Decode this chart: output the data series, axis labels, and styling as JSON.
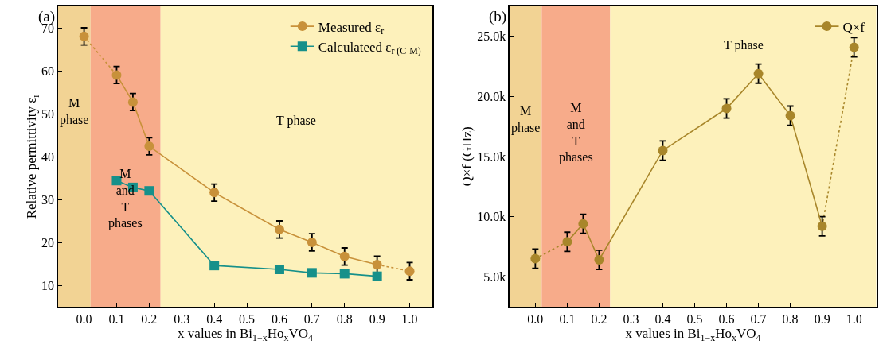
{
  "chart_data": [
    {
      "type": "line",
      "title": "(a)",
      "xlabel": "x values in Bi$_{1−x}$Ho$_{x}$VO$_{4}$",
      "ylabel": "Relative permittivity ε$_{r}$",
      "xlim": [
        -0.08,
        1.07
      ],
      "ylim": [
        5,
        75
      ],
      "xticks": [
        {
          "value": 0,
          "label": "0.0"
        },
        {
          "value": 0.1,
          "label": "0.1"
        },
        {
          "value": 0.2,
          "label": "0.2"
        },
        {
          "value": 0.3,
          "label": "0.3"
        },
        {
          "value": 0.4,
          "label": "0.4"
        },
        {
          "value": 0.5,
          "label": "0.5"
        },
        {
          "value": 0.6,
          "label": "0.6"
        },
        {
          "value": 0.7,
          "label": "0.7"
        },
        {
          "value": 0.8,
          "label": "0.8"
        },
        {
          "value": 0.9,
          "label": "0.9"
        },
        {
          "value": 1,
          "label": "1.0"
        }
      ],
      "yticks": [
        10,
        20,
        30,
        40,
        50,
        60,
        70
      ],
      "bands": [
        {
          "axis": "x",
          "from": -0.08,
          "to": 0.02,
          "label": "M\nphase",
          "color": "#f2d394"
        },
        {
          "axis": "x",
          "from": 0.02,
          "to": 0.235,
          "label": "M\nand\nT\nphases",
          "color": "#f7ab8a"
        },
        {
          "axis": "x",
          "from": 0.235,
          "to": 1.07,
          "label": "T phase",
          "color": "#fdf1bb"
        }
      ],
      "legend": "top right",
      "series": [
        {
          "name": "Measured ε$_{r}$",
          "color": "#c8913a",
          "line_style": "solid",
          "marker": "circle",
          "x": [
            0.1,
            0.15,
            0.2,
            0.4,
            0.6,
            0.7,
            0.8,
            0.9
          ],
          "values": [
            59,
            52.7,
            42.4,
            31.6,
            23,
            20,
            16.7,
            14.8
          ],
          "errors": [
            2,
            2,
            2,
            2,
            2,
            2,
            2,
            2
          ]
        },
        {
          "color": "#c8913a",
          "line_style": "dotted",
          "marker": "none",
          "x": [
            0,
            0.1
          ],
          "values": [
            68,
            59
          ]
        },
        {
          "color": "#c8913a",
          "line_style": "dotted",
          "marker": "none",
          "x": [
            0.9,
            1.0
          ],
          "values": [
            14.8,
            13.3
          ]
        },
        {
          "type": "scatter",
          "color": "#c8913a",
          "marker": "circle",
          "x": [
            0,
            1.0
          ],
          "values": [
            68,
            13.3
          ],
          "errors": [
            2,
            2
          ]
        },
        {
          "name": "Calculateed ε$_{r (C-M)}$",
          "color": "#16908a",
          "line_style": "solid",
          "marker": "square",
          "x": [
            0.1,
            0.15,
            0.2,
            0.4,
            0.6,
            0.7,
            0.8,
            0.9
          ],
          "values": [
            34.4,
            32.8,
            32.0,
            14.6,
            13.7,
            12.9,
            12.7,
            12.1
          ]
        }
      ]
    },
    {
      "type": "line",
      "title": "(b)",
      "xlabel": "x values in Bi$_{1−x}$Ho$_{x}$VO$_{4}$",
      "ylabel": "Q×f (GHz)",
      "xlim": [
        -0.08,
        1.07
      ],
      "ylim": [
        2500,
        27500
      ],
      "xticks": [
        {
          "value": 0,
          "label": "0.0"
        },
        {
          "value": 0.1,
          "label": "0.1"
        },
        {
          "value": 0.2,
          "label": "0.2"
        },
        {
          "value": 0.3,
          "label": "0.3"
        },
        {
          "value": 0.4,
          "label": "0.4"
        },
        {
          "value": 0.5,
          "label": "0.5"
        },
        {
          "value": 0.6,
          "label": "0.6"
        },
        {
          "value": 0.7,
          "label": "0.7"
        },
        {
          "value": 0.8,
          "label": "0.8"
        },
        {
          "value": 0.9,
          "label": "0.9"
        },
        {
          "value": 1,
          "label": "1.0"
        }
      ],
      "yticks": [
        {
          "value": 5000,
          "label": "5.0k"
        },
        {
          "value": 10000,
          "label": "10.0k"
        },
        {
          "value": 15000,
          "label": "15.0k"
        },
        {
          "value": 20000,
          "label": "20.0k"
        },
        {
          "value": 25000,
          "label": "25.0k"
        }
      ],
      "bands": [
        {
          "axis": "x",
          "from": -0.08,
          "to": 0.02,
          "label": "M\nphase",
          "color": "#f2d394"
        },
        {
          "axis": "x",
          "from": 0.02,
          "to": 0.235,
          "label": "M\nand\nT\nphases",
          "color": "#f7ab8a"
        },
        {
          "axis": "x",
          "from": 0.235,
          "to": 1.07,
          "label": "T phase",
          "color": "#fdf1bb"
        }
      ],
      "legend": "top right",
      "series": [
        {
          "name": "Q×f",
          "color": "#a8862a",
          "line_style": "solid",
          "marker": "circle",
          "x": [
            0.1,
            0.15,
            0.2,
            0.4,
            0.6,
            0.7,
            0.8,
            0.9
          ],
          "values": [
            7900,
            9400,
            6400,
            15500,
            19000,
            21900,
            18400,
            9200
          ],
          "errors": [
            800,
            800,
            800,
            800,
            800,
            800,
            800,
            800
          ]
        },
        {
          "color": "#a8862a",
          "line_style": "dotted",
          "marker": "none",
          "x": [
            0,
            0.1
          ],
          "values": [
            6500,
            7900
          ]
        },
        {
          "color": "#a8862a",
          "line_style": "dotted",
          "marker": "none",
          "x": [
            0.9,
            1.0
          ],
          "values": [
            9200,
            24100
          ]
        },
        {
          "type": "scatter",
          "color": "#a8862a",
          "marker": "circle",
          "x": [
            0,
            1.0
          ],
          "values": [
            6500,
            24100
          ],
          "errors": [
            800,
            800
          ]
        }
      ]
    }
  ]
}
